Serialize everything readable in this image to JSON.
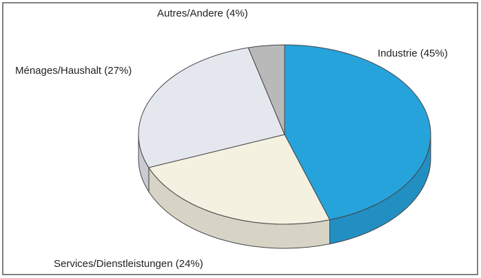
{
  "chart_data": {
    "type": "pie",
    "values": [
      45,
      24,
      27,
      4
    ],
    "value_labels": [
      "Industrie (45%)",
      "Services/Dienstleistungen (24%)",
      "Ménages/Haushalt (27%)",
      "Autres/Andere (4%)"
    ],
    "colors": [
      "#27a3dc",
      "#f4f1e1",
      "#e5e7ef",
      "#b9b9b9"
    ],
    "start_angle": 0,
    "direction": "clockwise",
    "three_d": true
  }
}
